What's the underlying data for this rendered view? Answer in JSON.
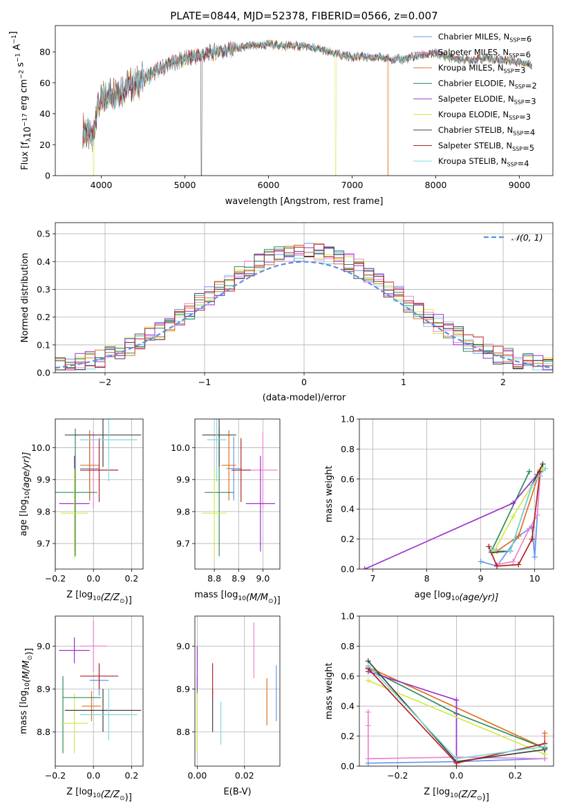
{
  "colors": {
    "chabrier_miles": "#6495ed",
    "salpeter_miles": "#ee82d0",
    "kroupa_miles": "#e07020",
    "chabrier_elodie": "#2e8b57",
    "salpeter_elodie": "#9932cc",
    "kroupa_elodie": "#d4e84c",
    "chabrier_stelib": "#404040",
    "salpeter_stelib": "#b22222",
    "kroupa_stelib": "#7fd8dc"
  },
  "models": [
    {
      "key": "chabrier_miles",
      "label": "Chabrier MILES, N",
      "sub": "SSP",
      "suffix": "=6"
    },
    {
      "key": "salpeter_miles",
      "label": "Salpeter MILES, N",
      "sub": "SSP",
      "suffix": "=6"
    },
    {
      "key": "kroupa_miles",
      "label": "Kroupa MILES, N",
      "sub": "SSP",
      "suffix": "=3"
    },
    {
      "key": "chabrier_elodie",
      "label": "Chabrier ELODIE, N",
      "sub": "SSP",
      "suffix": "=2"
    },
    {
      "key": "salpeter_elodie",
      "label": "Salpeter ELODIE, N",
      "sub": "SSP",
      "suffix": "=3"
    },
    {
      "key": "kroupa_elodie",
      "label": "Kroupa ELODIE, N",
      "sub": "SSP",
      "suffix": "=3"
    },
    {
      "key": "chabrier_stelib",
      "label": "Chabrier STELIB, N",
      "sub": "SSP",
      "suffix": "=4"
    },
    {
      "key": "salpeter_stelib",
      "label": "Salpeter STELIB, N",
      "sub": "SSP",
      "suffix": "=5"
    },
    {
      "key": "kroupa_stelib",
      "label": "Kroupa STELIB, N",
      "sub": "SSP",
      "suffix": "=4"
    }
  ],
  "chart_data": [
    {
      "id": "spectrum",
      "type": "line",
      "title": "PLATE=0844, MJD=52378, FIBERID=0566, z=0.007",
      "xlabel": "wavelength [Angstrom, rest frame]",
      "ylabel": "Flux [f",
      "ylabel_sub": "λ",
      "ylabel_mid": "10",
      "ylabel_sup": "−17",
      "ylabel_end": " erg cm",
      "ylabel_sup2": "−2",
      "ylabel_end2": " s",
      "ylabel_sup3": "−1",
      "ylabel_end3": " A",
      "ylabel_sup4": "−1",
      "ylabel_close": "]",
      "xlim": [
        3450,
        9400
      ],
      "ylim": [
        0,
        97
      ],
      "xticks": [
        "4000",
        "5000",
        "6000",
        "7000",
        "8000",
        "9000"
      ],
      "xtick_values": [
        4000,
        5000,
        6000,
        7000,
        8000,
        9000
      ],
      "yticks": [
        "0",
        "20",
        "40",
        "60",
        "80"
      ],
      "ytick_values": [
        0,
        20,
        40,
        60,
        80
      ],
      "legend_position": "top-right",
      "continuum": [
        [
          3800,
          30
        ],
        [
          3900,
          24
        ],
        [
          3950,
          45
        ],
        [
          4050,
          52
        ],
        [
          4200,
          56
        ],
        [
          4400,
          60
        ],
        [
          4600,
          66
        ],
        [
          4800,
          72
        ],
        [
          5000,
          76
        ],
        [
          5200,
          78
        ],
        [
          5400,
          81
        ],
        [
          5600,
          82
        ],
        [
          5800,
          84
        ],
        [
          6000,
          85
        ],
        [
          6200,
          84
        ],
        [
          6400,
          84
        ],
        [
          6600,
          82
        ],
        [
          6800,
          79
        ],
        [
          7000,
          77
        ],
        [
          7200,
          77
        ],
        [
          7400,
          76
        ],
        [
          7600,
          75
        ],
        [
          7800,
          78
        ],
        [
          8000,
          79
        ],
        [
          8200,
          76
        ],
        [
          8400,
          75
        ],
        [
          8600,
          76
        ],
        [
          8800,
          75
        ],
        [
          9000,
          74
        ],
        [
          9150,
          72
        ]
      ],
      "dropouts": [
        {
          "series": "chabrier_stelib",
          "x": 5200,
          "to": 0
        },
        {
          "series": "kroupa_elodie",
          "x": 3910,
          "to": 0
        },
        {
          "series": "kroupa_elodie",
          "x": 6800,
          "to": 0
        },
        {
          "series": "kroupa_miles",
          "x": 7430,
          "to": 0
        }
      ]
    },
    {
      "id": "residuals",
      "type": "histogram",
      "xlabel": "(data-model)/error",
      "ylabel": "Normed distribution",
      "xlim": [
        -2.5,
        2.5
      ],
      "ylim": [
        0,
        0.54
      ],
      "xticks": [
        "−2",
        "−1",
        "0",
        "1",
        "2"
      ],
      "xtick_values": [
        -2,
        -1,
        0,
        1,
        2
      ],
      "yticks": [
        "0.0",
        "0.1",
        "0.2",
        "0.3",
        "0.4",
        "0.5"
      ],
      "ytick_values": [
        0,
        0.1,
        0.2,
        0.3,
        0.4,
        0.5
      ],
      "legend_label": "𝒩(0, 1)",
      "legend_position": "top-right",
      "reference_curve": "normal(0,1)",
      "bin_width": 0.1,
      "bin_start": -2.5
    },
    {
      "id": "age_vs_Z",
      "type": "errorbar",
      "xlabel": "Z [log",
      "xlabel_sub": "10",
      "xlabel_rest": "(Z/Z",
      "xlabel_sub2": "⊙",
      "xlabel_close": ")]",
      "ylabel": "age  [log",
      "ylabel_sub": "10",
      "ylabel_rest": "(age/yr)]",
      "xlim": [
        -0.2,
        0.26
      ],
      "ylim": [
        9.62,
        10.09
      ],
      "xticks": [
        "−0.2",
        "0.0",
        "0.2"
      ],
      "xtick_values": [
        -0.2,
        0.0,
        0.2
      ],
      "yticks": [
        "9.7",
        "9.8",
        "9.9",
        "10.0"
      ],
      "ytick_values": [
        9.7,
        9.8,
        9.9,
        10.0
      ],
      "points": [
        {
          "series": "chabrier_miles",
          "x": -0.02,
          "xe": 0.05,
          "y": 9.935,
          "ye": 0.1
        },
        {
          "series": "salpeter_miles",
          "x": 0.0,
          "xe": 0.03,
          "y": 9.93,
          "ye": 0.12
        },
        {
          "series": "kroupa_miles",
          "x": -0.02,
          "xe": 0.05,
          "y": 9.945,
          "ye": 0.11
        },
        {
          "series": "chabrier_elodie",
          "x": -0.095,
          "xe": 0.115,
          "y": 9.86,
          "ye": 0.2
        },
        {
          "series": "salpeter_elodie",
          "x": -0.1,
          "xe": 0.08,
          "y": 9.825,
          "ye": 0.15
        },
        {
          "series": "kroupa_elodie",
          "x": -0.1,
          "xe": 0.07,
          "y": 9.795,
          "ye": 0.14
        },
        {
          "series": "chabrier_stelib",
          "x": 0.05,
          "xe": 0.2,
          "y": 10.04,
          "ye": 0.1
        },
        {
          "series": "salpeter_stelib",
          "x": 0.03,
          "xe": 0.1,
          "y": 9.93,
          "ye": 0.1
        },
        {
          "series": "kroupa_stelib",
          "x": 0.08,
          "xe": 0.15,
          "y": 10.025,
          "ye": 0.13
        }
      ]
    },
    {
      "id": "age_vs_mass",
      "type": "errorbar",
      "xlabel": "mass [log",
      "xlabel_sub": "10",
      "xlabel_rest": "(M/M",
      "xlabel_sub2": "⊙",
      "xlabel_close": ")]",
      "xlim": [
        8.72,
        9.07
      ],
      "ylim": [
        9.62,
        10.09
      ],
      "xticks": [
        "8.8",
        "8.9",
        "9.0"
      ],
      "xtick_values": [
        8.8,
        8.9,
        9.0
      ],
      "yticks": [
        "9.7",
        "9.8",
        "9.9",
        "10.0"
      ],
      "ytick_values": [
        9.7,
        9.8,
        9.9,
        10.0
      ],
      "points": [
        {
          "series": "chabrier_miles",
          "x": 8.88,
          "xe": 0.03,
          "y": 9.935,
          "ye": 0.1
        },
        {
          "series": "salpeter_miles",
          "x": 9.0,
          "xe": 0.06,
          "y": 9.93,
          "ye": 0.12
        },
        {
          "series": "kroupa_miles",
          "x": 8.86,
          "xe": 0.03,
          "y": 9.945,
          "ye": 0.11
        },
        {
          "series": "chabrier_elodie",
          "x": 8.82,
          "xe": 0.06,
          "y": 9.86,
          "ye": 0.2
        },
        {
          "series": "salpeter_elodie",
          "x": 8.99,
          "xe": 0.06,
          "y": 9.825,
          "ye": 0.15
        },
        {
          "series": "kroupa_elodie",
          "x": 8.8,
          "xe": 0.05,
          "y": 9.795,
          "ye": 0.14
        },
        {
          "series": "chabrier_stelib",
          "x": 8.82,
          "xe": 0.07,
          "y": 10.04,
          "ye": 0.1
        },
        {
          "series": "salpeter_stelib",
          "x": 8.91,
          "xe": 0.04,
          "y": 9.93,
          "ye": 0.1
        },
        {
          "series": "kroupa_stelib",
          "x": 8.81,
          "xe": 0.04,
          "y": 10.025,
          "ye": 0.13
        }
      ]
    },
    {
      "id": "massweight_vs_age",
      "type": "line",
      "xlabel": "age  [log",
      "xlabel_sub": "10",
      "xlabel_rest": "(age/yr)]",
      "ylabel": "mass weight",
      "xlim": [
        6.75,
        10.35
      ],
      "ylim": [
        0,
        1.0
      ],
      "xticks": [
        "7",
        "8",
        "9",
        "10"
      ],
      "xtick_values": [
        7,
        8,
        9,
        10
      ],
      "yticks": [
        "0.0",
        "0.2",
        "0.4",
        "0.6",
        "0.8",
        "1.0"
      ],
      "ytick_values": [
        0,
        0.2,
        0.4,
        0.6,
        0.8,
        1.0
      ],
      "series": [
        {
          "key": "chabrier_miles",
          "x": [
            9.0,
            9.3,
            9.7,
            9.95,
            10.0,
            10.1
          ],
          "y": [
            0.05,
            0.02,
            0.22,
            0.28,
            0.08,
            0.65
          ]
        },
        {
          "key": "salpeter_miles",
          "x": [
            9.3,
            9.6,
            9.9,
            10.05,
            10.1
          ],
          "y": [
            0.03,
            0.05,
            0.27,
            0.36,
            0.62
          ]
        },
        {
          "key": "kroupa_miles",
          "x": [
            9.3,
            9.7,
            10.1
          ],
          "y": [
            0.12,
            0.22,
            0.66
          ]
        },
        {
          "key": "chabrier_elodie",
          "x": [
            9.2,
            9.9
          ],
          "y": [
            0.12,
            0.65
          ]
        },
        {
          "key": "salpeter_elodie",
          "x": [
            6.85,
            9.6,
            10.05
          ],
          "y": [
            0.0,
            0.44,
            0.63
          ]
        },
        {
          "key": "kroupa_elodie",
          "x": [
            9.25,
            9.6,
            10.15
          ],
          "y": [
            0.12,
            0.35,
            0.68
          ]
        },
        {
          "key": "chabrier_stelib",
          "x": [
            9.2,
            9.55,
            9.95,
            10.15
          ],
          "y": [
            0.11,
            0.12,
            0.56,
            0.7
          ]
        },
        {
          "key": "salpeter_stelib",
          "x": [
            9.15,
            9.3,
            9.7,
            9.95,
            10.1
          ],
          "y": [
            0.15,
            0.02,
            0.03,
            0.2,
            0.65
          ]
        },
        {
          "key": "kroupa_stelib",
          "x": [
            9.2,
            9.55,
            9.95,
            10.2
          ],
          "y": [
            0.13,
            0.12,
            0.56,
            0.67
          ]
        }
      ]
    },
    {
      "id": "mass_vs_Z",
      "type": "errorbar",
      "xlabel": "Z [log",
      "xlabel_sub": "10",
      "xlabel_rest": "(Z/Z",
      "xlabel_sub2": "⊙",
      "xlabel_close": ")]",
      "ylabel": "mass [log",
      "ylabel_sub": "10",
      "ylabel_rest": "(M/M",
      "ylabel_sub2": "⊙",
      "ylabel_close": ")]",
      "xlim": [
        -0.2,
        0.26
      ],
      "ylim": [
        8.72,
        9.07
      ],
      "xticks": [
        "−0.2",
        "0.0",
        "0.2"
      ],
      "xtick_values": [
        -0.2,
        0.0,
        0.2
      ],
      "yticks": [
        "8.8",
        "8.9",
        "9.0"
      ],
      "ytick_values": [
        8.8,
        8.9,
        9.0
      ],
      "points": [
        {
          "series": "chabrier_miles",
          "x": 0.03,
          "xe": 0.05,
          "y": 8.92,
          "ye": 0.035
        },
        {
          "series": "salpeter_miles",
          "x": 0.0,
          "xe": 0.07,
          "y": 9.0,
          "ye": 0.06
        },
        {
          "series": "kroupa_miles",
          "x": -0.01,
          "xe": 0.05,
          "y": 8.86,
          "ye": 0.035
        },
        {
          "series": "chabrier_elodie",
          "x": -0.16,
          "xe": 0.0,
          "y": 8.84,
          "ye": 0.09
        },
        {
          "series": "salpeter_elodie",
          "x": -0.1,
          "xe": 0.08,
          "y": 8.99,
          "ye": 0.03
        },
        {
          "series": "kroupa_elodie",
          "x": -0.1,
          "xe": 0.07,
          "y": 8.82,
          "ye": 0.07
        },
        {
          "series": "chabrier_stelib",
          "x": 0.05,
          "xe": 0.2,
          "y": 8.85,
          "ye": 0.05
        },
        {
          "series": "salpeter_stelib",
          "x": 0.03,
          "xe": 0.1,
          "y": 8.93,
          "ye": 0.03
        },
        {
          "series": "kroupa_stelib",
          "x": 0.08,
          "xe": 0.15,
          "y": 8.84,
          "ye": 0.06
        },
        {
          "series": "chabrier_elodie",
          "x": -0.06,
          "xe": 0.1,
          "y": 8.88,
          "ye": 0.0
        }
      ]
    },
    {
      "id": "mass_vs_EBV",
      "type": "errorbar",
      "xlabel": "E(B-V)",
      "xlim": [
        -0.001,
        0.035
      ],
      "ylim": [
        8.72,
        9.07
      ],
      "xticks": [
        "0.00",
        "0.02"
      ],
      "xtick_values": [
        0.0,
        0.02
      ],
      "yticks": [
        "8.8",
        "8.9",
        "9.0"
      ],
      "ytick_values": [
        8.8,
        8.9,
        9.0
      ],
      "points": [
        {
          "series": "chabrier_miles",
          "x": 0.0335,
          "y": 8.89,
          "ye": 0.065
        },
        {
          "series": "salpeter_miles",
          "x": 0.024,
          "y": 8.99,
          "ye": 0.065
        },
        {
          "series": "kroupa_miles",
          "x": 0.0295,
          "y": 8.87,
          "ye": 0.055
        },
        {
          "series": "chabrier_elodie",
          "x": 0.0,
          "y": 8.84,
          "ye": 0.09
        },
        {
          "series": "salpeter_elodie",
          "x": 0.0,
          "y": 8.95,
          "ye": 0.05
        },
        {
          "series": "kroupa_elodie",
          "x": 0.0,
          "y": 8.82,
          "ye": 0.07
        },
        {
          "series": "chabrier_stelib",
          "x": 0.0065,
          "y": 8.85,
          "ye": 0.05
        },
        {
          "series": "salpeter_stelib",
          "x": 0.0065,
          "y": 8.92,
          "ye": 0.04
        },
        {
          "series": "kroupa_stelib",
          "x": 0.01,
          "y": 8.82,
          "ye": 0.05
        }
      ]
    },
    {
      "id": "massweight_vs_Z",
      "type": "line",
      "xlabel": "Z [log",
      "xlabel_sub": "10",
      "xlabel_rest": "(Z/Z",
      "xlabel_sub2": "⊙",
      "xlabel_close": ")]",
      "ylabel": "mass weight",
      "xlim": [
        -0.33,
        0.33
      ],
      "ylim": [
        0,
        1.0
      ],
      "xticks": [
        "−0.2",
        "0.0",
        "0.2"
      ],
      "xtick_values": [
        -0.2,
        0.0,
        0.2
      ],
      "yticks": [
        "0.0",
        "0.2",
        "0.4",
        "0.6",
        "0.8",
        "1.0"
      ],
      "ytick_values": [
        0,
        0.2,
        0.4,
        0.6,
        0.8,
        1.0
      ],
      "series": [
        {
          "key": "chabrier_miles",
          "x": [
            -0.3,
            0.0,
            0.3,
            0.3
          ],
          "y": [
            0.02,
            0.03,
            0.05,
            0.15
          ]
        },
        {
          "key": "salpeter_miles",
          "x": [
            -0.3,
            -0.3,
            -0.3,
            0.0,
            0.3,
            0.3
          ],
          "y": [
            0.36,
            0.27,
            0.05,
            0.06,
            0.05,
            0.2
          ]
        },
        {
          "key": "kroupa_miles",
          "x": [
            -0.3,
            0.3,
            0.3
          ],
          "y": [
            0.66,
            0.12,
            0.22
          ]
        },
        {
          "key": "chabrier_elodie",
          "x": [
            -0.3,
            0.0,
            0.3
          ],
          "y": [
            0.65,
            0.35,
            0.12
          ]
        },
        {
          "key": "salpeter_elodie",
          "x": [
            -0.3,
            0.0,
            0.0
          ],
          "y": [
            0.63,
            0.44,
            0.0
          ]
        },
        {
          "key": "kroupa_elodie",
          "x": [
            -0.3,
            0.3,
            0.3
          ],
          "y": [
            0.57,
            0.08,
            0.12
          ]
        },
        {
          "key": "chabrier_stelib",
          "x": [
            -0.3,
            0.0,
            0.3,
            0.3
          ],
          "y": [
            0.7,
            0.03,
            0.11,
            0.12
          ]
        },
        {
          "key": "salpeter_stelib",
          "x": [
            -0.3,
            0.0,
            0.3
          ],
          "y": [
            0.65,
            0.02,
            0.15
          ]
        },
        {
          "key": "kroupa_stelib",
          "x": [
            -0.3,
            0.0,
            0.3
          ],
          "y": [
            0.67,
            0.05,
            0.13
          ]
        }
      ]
    }
  ]
}
